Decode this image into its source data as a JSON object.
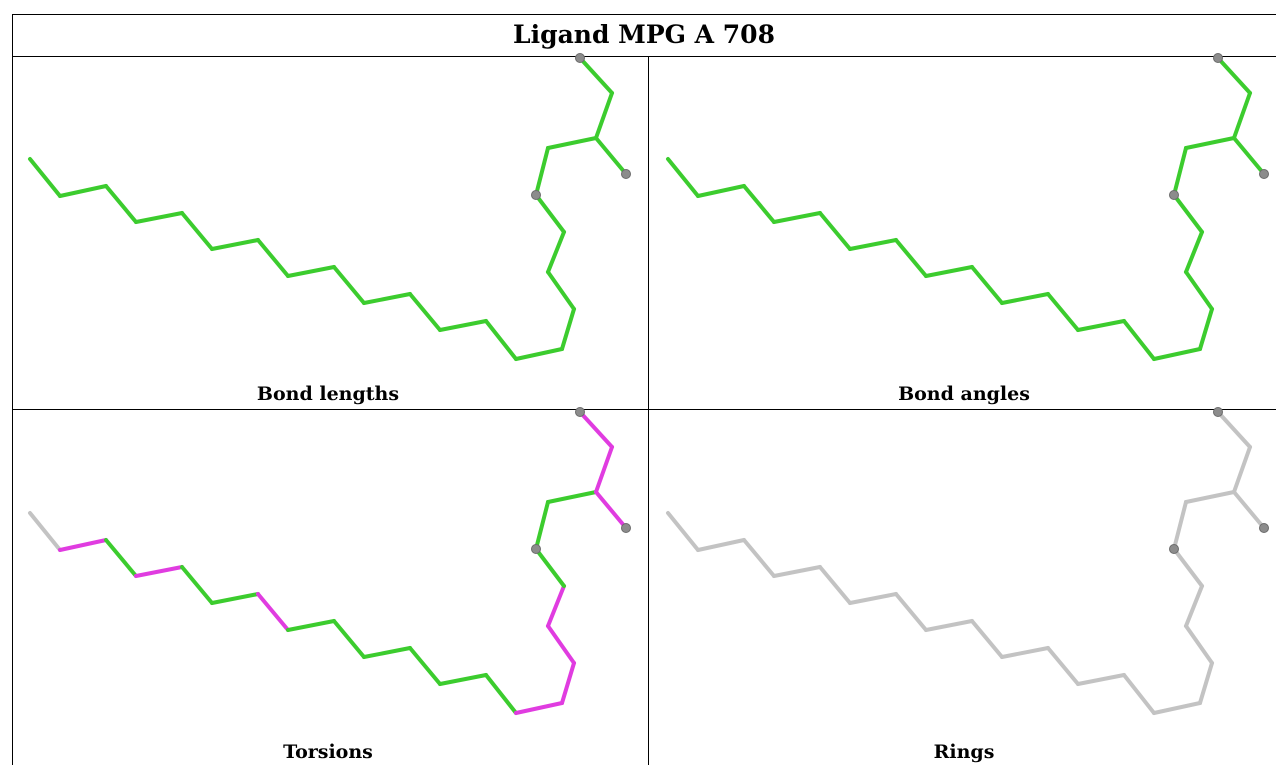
{
  "title": "Ligand MPG A 708",
  "colors": {
    "pass": "#3ccc2e",
    "outlier": "#e03ce0",
    "neutral": "#c3c3c3",
    "atom": "#8c8c8c"
  },
  "panels": [
    {
      "id": "bond-lengths",
      "caption": "Bond lengths",
      "bond_colors": [
        "pass",
        "pass",
        "pass",
        "pass",
        "pass",
        "pass",
        "pass",
        "pass",
        "pass",
        "pass",
        "pass",
        "pass",
        "pass",
        "pass",
        "pass",
        "pass",
        "pass",
        "pass",
        "pass",
        "pass",
        "pass",
        "pass",
        "pass",
        "pass",
        "pass"
      ]
    },
    {
      "id": "bond-angles",
      "caption": "Bond angles",
      "bond_colors": [
        "pass",
        "pass",
        "pass",
        "pass",
        "pass",
        "pass",
        "pass",
        "pass",
        "pass",
        "pass",
        "pass",
        "pass",
        "pass",
        "pass",
        "pass",
        "pass",
        "pass",
        "pass",
        "pass",
        "pass",
        "pass",
        "pass",
        "pass",
        "pass",
        "pass"
      ]
    },
    {
      "id": "torsions",
      "caption": "Torsions",
      "bond_colors": [
        "neutral",
        "outlier",
        "pass",
        "outlier",
        "pass",
        "pass",
        "outlier",
        "pass",
        "pass",
        "pass",
        "pass",
        "pass",
        "pass",
        "outlier",
        "outlier",
        "outlier",
        "outlier",
        "pass",
        "pass",
        "pass",
        "outlier",
        "outlier",
        "outlier",
        "neutral",
        "neutral"
      ]
    },
    {
      "id": "rings",
      "caption": "Rings",
      "bond_colors": [
        "neutral",
        "neutral",
        "neutral",
        "neutral",
        "neutral",
        "neutral",
        "neutral",
        "neutral",
        "neutral",
        "neutral",
        "neutral",
        "neutral",
        "neutral",
        "neutral",
        "neutral",
        "neutral",
        "neutral",
        "neutral",
        "neutral",
        "neutral",
        "neutral",
        "neutral",
        "neutral",
        "neutral",
        "neutral"
      ]
    }
  ]
}
